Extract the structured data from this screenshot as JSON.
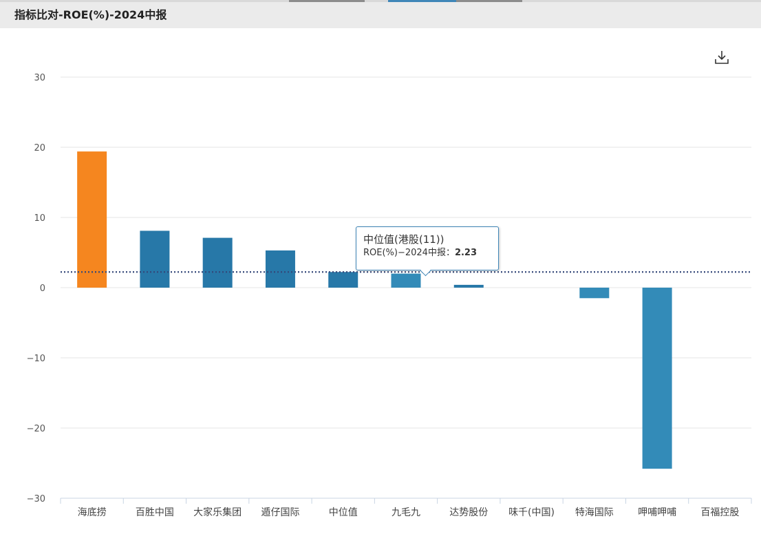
{
  "header": {
    "title": "指标比对-ROE(%)-2024中报"
  },
  "toolbar": {
    "download_icon": "download-icon"
  },
  "tooltip": {
    "title": "中位值(港股(11))",
    "label": "ROE(%)−2024中报：",
    "value": "2.23"
  },
  "colors": {
    "highlight": "#f5861f",
    "bar": "#2778a8",
    "bar_light": "#338bb8",
    "median_line": "#34487a",
    "tab_accent": "#3f86b8"
  },
  "chart_data": {
    "type": "bar",
    "title": "",
    "xlabel": "",
    "ylabel": "",
    "ylim": [
      -30,
      30
    ],
    "yticks": [
      30,
      20,
      10,
      0,
      -10,
      -20,
      -30
    ],
    "ytick_labels": [
      "30",
      "20",
      "10",
      "0",
      "−10",
      "−20",
      "−30"
    ],
    "grid": true,
    "categories": [
      "海底捞",
      "百胜中国",
      "大家乐集团",
      "遁仔国际",
      "中位值",
      "九毛九",
      "达势股份",
      "味千(中国)",
      "特海国际",
      "呷哺呷哺",
      "百福控股"
    ],
    "values": [
      19.4,
      8.1,
      7.1,
      5.3,
      2.23,
      2.0,
      0.4,
      0.0,
      -1.5,
      -25.8,
      0.0
    ],
    "highlight_index": 0,
    "median_value": 2.23
  }
}
